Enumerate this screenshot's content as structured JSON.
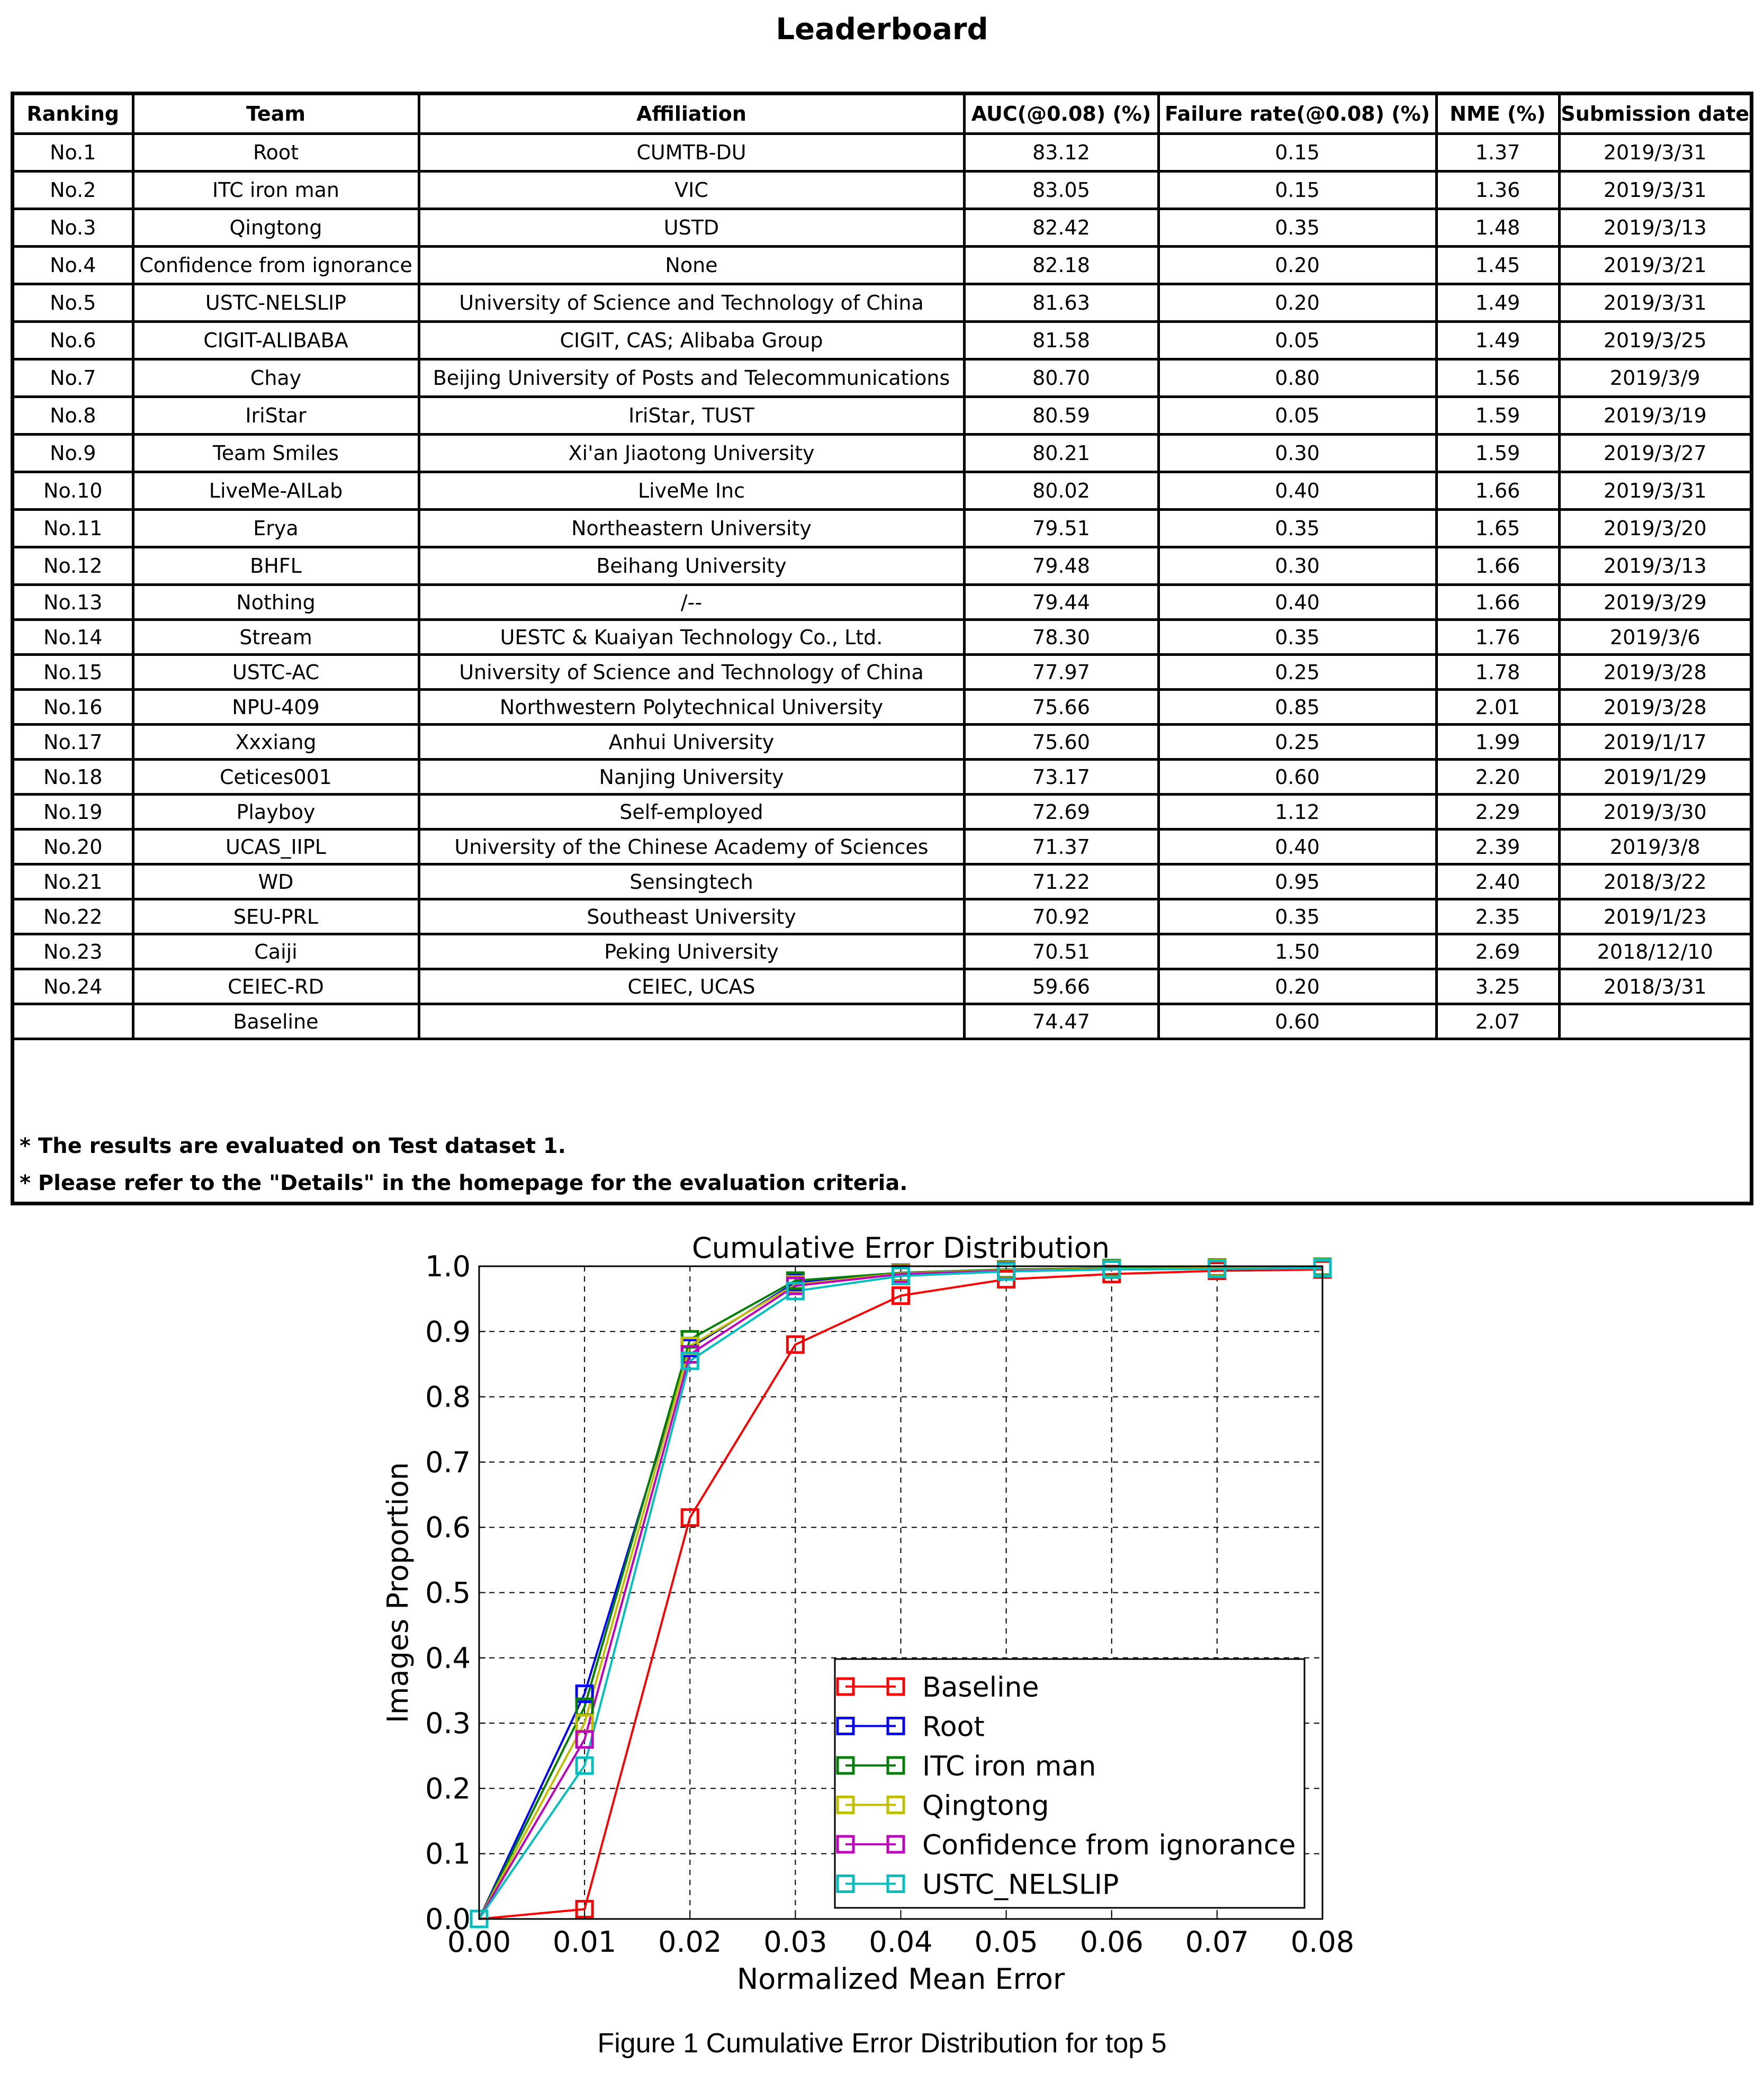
{
  "title": "Leaderboard",
  "table": {
    "headers": [
      "Ranking",
      "Team",
      "Affiliation",
      "AUC(@0.08) (%)",
      "Failure rate(@0.08) (%)",
      "NME (%)",
      "Submission date"
    ],
    "rows": [
      [
        "No.1",
        "Root",
        "CUMTB-DU",
        "83.12",
        "0.15",
        "1.37",
        "2019/3/31"
      ],
      [
        "No.2",
        "ITC iron man",
        "VIC",
        "83.05",
        "0.15",
        "1.36",
        "2019/3/31"
      ],
      [
        "No.3",
        "Qingtong",
        "USTD",
        "82.42",
        "0.35",
        "1.48",
        "2019/3/13"
      ],
      [
        "No.4",
        "Confidence from ignorance",
        "None",
        "82.18",
        "0.20",
        "1.45",
        "2019/3/21"
      ],
      [
        "No.5",
        "USTC-NELSLIP",
        "University of Science and Technology of China",
        "81.63",
        "0.20",
        "1.49",
        "2019/3/31"
      ],
      [
        "No.6",
        "CIGIT-ALIBABA",
        "CIGIT, CAS; Alibaba Group",
        "81.58",
        "0.05",
        "1.49",
        "2019/3/25"
      ],
      [
        "No.7",
        "Chay",
        "Beijing University of Posts and Telecommunications",
        "80.70",
        "0.80",
        "1.56",
        "2019/3/9"
      ],
      [
        "No.8",
        "IriStar",
        "IriStar, TUST",
        "80.59",
        "0.05",
        "1.59",
        "2019/3/19"
      ],
      [
        "No.9",
        "Team Smiles",
        "Xi'an Jiaotong University",
        "80.21",
        "0.30",
        "1.59",
        "2019/3/27"
      ],
      [
        "No.10",
        "LiveMe-AILab",
        "LiveMe Inc",
        "80.02",
        "0.40",
        "1.66",
        "2019/3/31"
      ],
      [
        "No.11",
        "Erya",
        "Northeastern University",
        "79.51",
        "0.35",
        "1.65",
        "2019/3/20"
      ],
      [
        "No.12",
        "BHFL",
        "Beihang University",
        "79.48",
        "0.30",
        "1.66",
        "2019/3/13"
      ],
      [
        "No.13",
        "Nothing",
        "/--",
        "79.44",
        "0.40",
        "1.66",
        "2019/3/29"
      ],
      [
        "No.14",
        "Stream",
        "UESTC & Kuaiyan Technology Co., Ltd.",
        "78.30",
        "0.35",
        "1.76",
        "2019/3/6"
      ],
      [
        "No.15",
        "USTC-AC",
        "University of Science and Technology of China",
        "77.97",
        "0.25",
        "1.78",
        "2019/3/28"
      ],
      [
        "No.16",
        "NPU-409",
        "Northwestern Polytechnical University",
        "75.66",
        "0.85",
        "2.01",
        "2019/3/28"
      ],
      [
        "No.17",
        "Xxxiang",
        "Anhui University",
        "75.60",
        "0.25",
        "1.99",
        "2019/1/17"
      ],
      [
        "No.18",
        "Cetices001",
        "Nanjing University",
        "73.17",
        "0.60",
        "2.20",
        "2019/1/29"
      ],
      [
        "No.19",
        "Playboy",
        "Self-employed",
        "72.69",
        "1.12",
        "2.29",
        "2019/3/30"
      ],
      [
        "No.20",
        "UCAS_IIPL",
        "University of the Chinese Academy of Sciences",
        "71.37",
        "0.40",
        "2.39",
        "2019/3/8"
      ],
      [
        "No.21",
        "WD",
        "Sensingtech",
        "71.22",
        "0.95",
        "2.40",
        "2018/3/22"
      ],
      [
        "No.22",
        "SEU-PRL",
        "Southeast University",
        "70.92",
        "0.35",
        "2.35",
        "2019/1/23"
      ],
      [
        "No.23",
        "Caiji",
        "Peking University",
        "70.51",
        "1.50",
        "2.69",
        "2018/12/10"
      ],
      [
        "No.24",
        "CEIEC-RD",
        "CEIEC, UCAS",
        "59.66",
        "0.20",
        "3.25",
        "2018/3/31"
      ],
      [
        "",
        "Baseline",
        "",
        "74.47",
        "0.60",
        "2.07",
        ""
      ]
    ],
    "notes": [
      "* The results are evaluated on Test dataset 1.",
      "* Please refer to the \"Details\" in the homepage for the evaluation criteria."
    ]
  },
  "chart_data": {
    "type": "line",
    "title": "Cumulative Error Distribution",
    "xlabel": "Normalized Mean Error",
    "ylabel": "Images Proportion",
    "x": [
      0.0,
      0.01,
      0.02,
      0.03,
      0.04,
      0.05,
      0.06,
      0.07,
      0.08
    ],
    "xlim": [
      0.0,
      0.08
    ],
    "ylim": [
      0.0,
      1.0
    ],
    "xticks": [
      "0.00",
      "0.01",
      "0.02",
      "0.03",
      "0.04",
      "0.05",
      "0.06",
      "0.07",
      "0.08"
    ],
    "yticks": [
      "0.0",
      "0.1",
      "0.2",
      "0.3",
      "0.4",
      "0.5",
      "0.6",
      "0.7",
      "0.8",
      "0.9",
      "1.0"
    ],
    "grid": true,
    "legend_position": "lower-right",
    "series": [
      {
        "name": "Baseline",
        "color": "#ff0000",
        "values": [
          0.0,
          0.015,
          0.615,
          0.88,
          0.955,
          0.98,
          0.988,
          0.993,
          0.995
        ]
      },
      {
        "name": "Root",
        "color": "#0000ff",
        "values": [
          0.0,
          0.345,
          0.875,
          0.975,
          0.99,
          0.995,
          0.997,
          0.998,
          0.999
        ]
      },
      {
        "name": "ITC iron man",
        "color": "#008000",
        "values": [
          0.0,
          0.325,
          0.888,
          0.978,
          0.99,
          0.995,
          0.997,
          0.998,
          0.999
        ]
      },
      {
        "name": "Qingtong",
        "color": "#bfbf00",
        "values": [
          0.0,
          0.3,
          0.878,
          0.972,
          0.989,
          0.994,
          0.996,
          0.997,
          0.998
        ]
      },
      {
        "name": "Confidence from ignorance",
        "color": "#bf00bf",
        "values": [
          0.0,
          0.275,
          0.865,
          0.97,
          0.988,
          0.993,
          0.995,
          0.996,
          0.997
        ]
      },
      {
        "name": "USTC_NELSLIP",
        "color": "#00bfbf",
        "values": [
          0.0,
          0.235,
          0.855,
          0.962,
          0.985,
          0.992,
          0.995,
          0.996,
          0.997
        ]
      }
    ]
  },
  "caption": "Figure 1   Cumulative Error Distribution for top 5"
}
